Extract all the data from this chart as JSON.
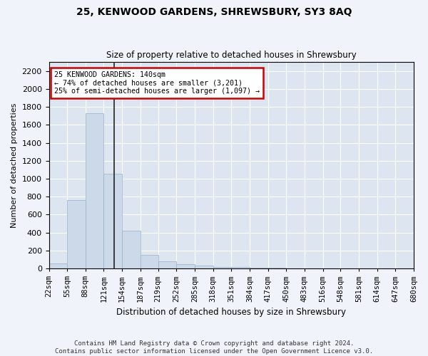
{
  "title1": "25, KENWOOD GARDENS, SHREWSBURY, SY3 8AQ",
  "title2": "Size of property relative to detached houses in Shrewsbury",
  "xlabel": "Distribution of detached houses by size in Shrewsbury",
  "ylabel": "Number of detached properties",
  "bin_edges": [
    22,
    55,
    88,
    121,
    154,
    187,
    219,
    252,
    285,
    318,
    351,
    384,
    417,
    450,
    483,
    516,
    548,
    581,
    614,
    647,
    680
  ],
  "bar_counts": [
    55,
    760,
    1730,
    1055,
    420,
    155,
    80,
    45,
    30,
    20,
    15,
    10,
    8,
    5,
    3,
    2,
    1,
    1,
    0,
    0
  ],
  "ylim": [
    0,
    2300
  ],
  "yticks": [
    0,
    200,
    400,
    600,
    800,
    1000,
    1200,
    1400,
    1600,
    1800,
    2000,
    2200
  ],
  "bar_color": "#ccd9e8",
  "bar_edge_color": "#9ab0c8",
  "property_size": 140,
  "annotation_text_line1": "25 KENWOOD GARDENS: 140sqm",
  "annotation_text_line2": "← 74% of detached houses are smaller (3,201)",
  "annotation_text_line3": "25% of semi-detached houses are larger (1,097) →",
  "annotation_box_facecolor": "#ffffff",
  "annotation_box_edgecolor": "#cc0000",
  "footer_line1": "Contains HM Land Registry data © Crown copyright and database right 2024.",
  "footer_line2": "Contains public sector information licensed under the Open Government Licence v3.0.",
  "fig_facecolor": "#f0f4fa",
  "ax_facecolor": "#dde6f0",
  "grid_color": "#ffffff",
  "title1_fontsize": 10,
  "title2_fontsize": 8.5,
  "ylabel_fontsize": 8,
  "xlabel_fontsize": 8.5,
  "footer_fontsize": 6.5,
  "tick_fontsize": 7.5,
  "ytick_fontsize": 8
}
